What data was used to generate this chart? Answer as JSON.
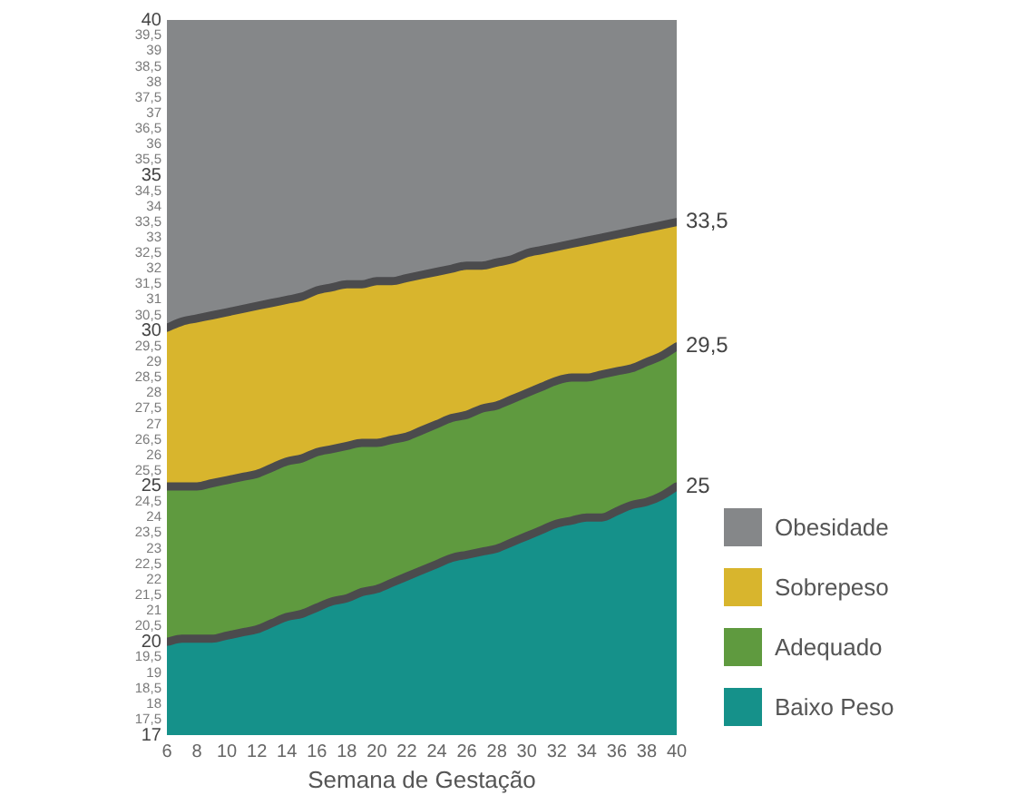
{
  "chart_data": {
    "type": "area",
    "xlabel": "Semana de Gestação",
    "x": [
      6,
      7,
      8,
      9,
      10,
      11,
      12,
      13,
      14,
      15,
      16,
      17,
      18,
      19,
      20,
      21,
      22,
      23,
      24,
      25,
      26,
      27,
      28,
      29,
      30,
      31,
      32,
      33,
      34,
      35,
      36,
      37,
      38,
      39,
      40
    ],
    "xlim": [
      6,
      40
    ],
    "xticks": [
      6,
      8,
      10,
      12,
      14,
      16,
      18,
      20,
      22,
      24,
      26,
      28,
      30,
      32,
      34,
      36,
      38,
      40
    ],
    "ylim": [
      17,
      40
    ],
    "yticks": [
      17,
      {
        "value": 17.5,
        "label": "17,5"
      },
      18,
      {
        "value": 18.5,
        "label": "18,5"
      },
      19,
      {
        "value": 19.5,
        "label": "19,5"
      },
      20,
      {
        "value": 20.5,
        "label": "20,5"
      },
      21,
      {
        "value": 21.5,
        "label": "21,5"
      },
      22,
      {
        "value": 22.5,
        "label": "22,5"
      },
      23,
      {
        "value": 23.5,
        "label": "23,5"
      },
      24,
      {
        "value": 24.5,
        "label": "24,5"
      },
      25,
      {
        "value": 25.5,
        "label": "25,5"
      },
      26,
      {
        "value": 26.5,
        "label": "26,5"
      },
      27,
      {
        "value": 27.5,
        "label": "27,5"
      },
      28,
      {
        "value": 28.5,
        "label": "28,5"
      },
      29,
      {
        "value": 29.5,
        "label": "29,5"
      },
      30,
      {
        "value": 30.5,
        "label": "30,5"
      },
      31,
      {
        "value": 31.5,
        "label": "31,5"
      },
      32,
      {
        "value": 32.5,
        "label": "32,5"
      },
      33,
      {
        "value": 33.5,
        "label": "33,5"
      },
      34,
      {
        "value": 34.5,
        "label": "34,5"
      },
      35,
      {
        "value": 35.5,
        "label": "35,5"
      },
      36,
      {
        "value": 36.5,
        "label": "36,5"
      },
      37,
      {
        "value": 37.5,
        "label": "37,5"
      },
      38,
      {
        "value": 38.5,
        "label": "38,5"
      },
      39,
      {
        "value": 39.5,
        "label": "39,5"
      },
      40
    ],
    "series": [
      {
        "name": "Obesidade",
        "color": "#858789",
        "values": [
          40,
          40,
          40,
          40,
          40,
          40,
          40,
          40,
          40,
          40,
          40,
          40,
          40,
          40,
          40,
          40,
          40,
          40,
          40,
          40,
          40,
          40,
          40,
          40,
          40,
          40,
          40,
          40,
          40,
          40,
          40,
          40,
          40,
          40,
          40
        ]
      },
      {
        "name": "Sobrepeso",
        "color": "#d8b52d",
        "values": [
          30.1,
          30.3,
          30.4,
          30.5,
          30.6,
          30.7,
          30.8,
          30.9,
          31.0,
          31.1,
          31.3,
          31.4,
          31.5,
          31.5,
          31.6,
          31.6,
          31.7,
          31.8,
          31.9,
          32.0,
          32.1,
          32.1,
          32.2,
          32.3,
          32.5,
          32.6,
          32.7,
          32.8,
          32.9,
          33.0,
          33.1,
          33.2,
          33.3,
          33.4,
          33.5
        ],
        "value_labels": [
          null,
          null,
          null,
          null,
          null,
          null,
          null,
          null,
          null,
          null,
          null,
          null,
          null,
          null,
          null,
          null,
          null,
          null,
          null,
          null,
          null,
          null,
          null,
          null,
          null,
          null,
          null,
          null,
          null,
          null,
          null,
          null,
          null,
          null,
          "33,5"
        ]
      },
      {
        "name": "Adequado",
        "color": "#5f9a3f",
        "values": [
          25.0,
          25.0,
          25.0,
          25.1,
          25.2,
          25.3,
          25.4,
          25.6,
          25.8,
          25.9,
          26.1,
          26.2,
          26.3,
          26.4,
          26.4,
          26.5,
          26.6,
          26.8,
          27.0,
          27.2,
          27.3,
          27.5,
          27.6,
          27.8,
          28.0,
          28.2,
          28.4,
          28.5,
          28.5,
          28.6,
          28.7,
          28.8,
          29.0,
          29.2,
          29.5
        ],
        "value_labels": [
          null,
          null,
          null,
          null,
          null,
          null,
          null,
          null,
          null,
          null,
          null,
          null,
          null,
          null,
          null,
          null,
          null,
          null,
          null,
          null,
          null,
          null,
          null,
          null,
          null,
          null,
          null,
          null,
          null,
          null,
          null,
          null,
          null,
          null,
          "29,5"
        ]
      },
      {
        "name": "Baixo Peso",
        "color": "#15918a",
        "values": [
          20.0,
          20.1,
          20.1,
          20.1,
          20.2,
          20.3,
          20.4,
          20.6,
          20.8,
          20.9,
          21.1,
          21.3,
          21.4,
          21.6,
          21.7,
          21.9,
          22.1,
          22.3,
          22.5,
          22.7,
          22.8,
          22.9,
          23.0,
          23.2,
          23.4,
          23.6,
          23.8,
          23.9,
          24.0,
          24.0,
          24.2,
          24.4,
          24.5,
          24.7,
          25.0
        ],
        "value_labels": [
          null,
          null,
          null,
          null,
          null,
          null,
          null,
          null,
          null,
          null,
          null,
          null,
          null,
          null,
          null,
          null,
          null,
          null,
          null,
          null,
          null,
          null,
          null,
          null,
          null,
          null,
          null,
          null,
          null,
          null,
          null,
          null,
          null,
          null,
          "25"
        ]
      }
    ],
    "legend": "bottom right",
    "grid": false
  }
}
